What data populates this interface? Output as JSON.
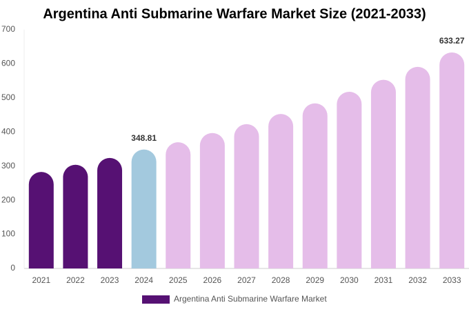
{
  "chart_data": {
    "type": "bar",
    "title": "Argentina Anti Submarine Warfare Market Size (2021-2033)",
    "categories": [
      "2021",
      "2022",
      "2023",
      "2024",
      "2025",
      "2026",
      "2027",
      "2028",
      "2029",
      "2030",
      "2031",
      "2032",
      "2033"
    ],
    "series": [
      {
        "name": "Argentina Anti Submarine Warfare Market",
        "color": "#561173",
        "values": [
          283,
          304,
          324,
          348.81,
          370,
          397,
          423,
          453,
          484,
          518,
          553,
          591,
          633.27
        ],
        "colors": [
          "#561173",
          "#561173",
          "#561173",
          "#a3c9de",
          "#e5bde9",
          "#e5bde9",
          "#e5bde9",
          "#e5bde9",
          "#e5bde9",
          "#e5bde9",
          "#e5bde9",
          "#e5bde9",
          "#e5bde9"
        ],
        "value_labels": [
          null,
          null,
          null,
          "348.81",
          null,
          null,
          null,
          null,
          null,
          null,
          null,
          null,
          "633.27"
        ]
      }
    ],
    "ylim": [
      0,
      700
    ],
    "yticks": [
      0,
      100,
      200,
      300,
      400,
      500,
      600,
      700
    ],
    "grid": false,
    "legend": "bottom"
  }
}
